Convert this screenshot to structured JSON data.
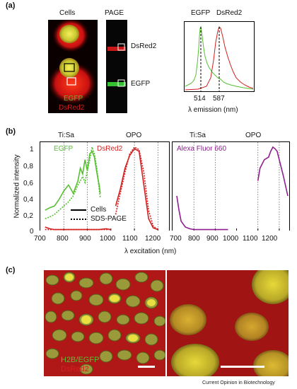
{
  "panel_a": {
    "letter": "(a)",
    "cells_title": "Cells",
    "page_title": "PAGE",
    "legend_green": "EGFP",
    "legend_red": "DsRed2",
    "band_red_label": "DsRed2",
    "band_green_label": "EGFP",
    "spectrum_label_green": "EGFP",
    "spectrum_label_red": "DsRed2",
    "peak_green": "514",
    "peak_red": "587",
    "xlabel": "λ emission (nm)",
    "colors": {
      "green": "#57c030",
      "red": "#d42020",
      "black": "#000000"
    }
  },
  "panel_b": {
    "letter": "(b)",
    "left_top_label_1": "Ti:Sa",
    "left_top_label_2": "OPO",
    "right_top_label_1": "Ti:Sa",
    "right_top_label_2": "OPO",
    "ylabel": "Normalized intensity",
    "xlabel": "λ excitation (nm)",
    "left_series_egfp": "EGFP",
    "left_series_dsred": "DsRed2",
    "right_series_alexa": "Alexa Fluor 660",
    "legend_cells": "Cells",
    "legend_page": "SDS-PAGE"
  },
  "panel_c": {
    "letter": "(c)",
    "label_green": "H2B/EGFP",
    "label_red": "DsRed2"
  },
  "footer": "Current Opinion in Biotechnology",
  "chart_data": [
    {
      "type": "line",
      "title": "",
      "xlabel": "λ excitation (nm)",
      "ylabel": "Normalized intensity",
      "xlim": [
        700,
        1000
      ],
      "ylim": [
        0,
        1.05
      ],
      "xticks": [
        "700",
        "800",
        "900",
        "1000"
      ],
      "yticks": [
        "0",
        "0,2",
        "0,4",
        "0,6",
        "0,8",
        "1"
      ],
      "series": [
        {
          "name": "EGFP",
          "style": "Cells",
          "color": "#57c030",
          "x": [
            720,
            740,
            760,
            780,
            800,
            820,
            840,
            860,
            870,
            880,
            890,
            900,
            910,
            920,
            930,
            940,
            950,
            955
          ],
          "y": [
            0.25,
            0.28,
            0.3,
            0.38,
            0.48,
            0.55,
            0.45,
            0.6,
            0.75,
            0.68,
            0.85,
            0.72,
            0.92,
            0.95,
            0.88,
            0.7,
            0.55,
            0.45
          ]
        },
        {
          "name": "EGFP",
          "style": "SDS-PAGE",
          "color": "#57c030",
          "x": [
            720,
            740,
            760,
            780,
            800,
            820,
            840,
            860,
            880,
            890,
            900,
            910,
            920,
            930,
            940,
            950,
            955
          ],
          "y": [
            0.15,
            0.17,
            0.2,
            0.25,
            0.3,
            0.35,
            0.42,
            0.55,
            0.65,
            0.58,
            0.72,
            0.85,
            1.0,
            0.92,
            0.75,
            0.5,
            0.4
          ]
        },
        {
          "name": "DsRed2",
          "style": "Cells",
          "color": "#d42020",
          "x": [
            720,
            740,
            760,
            780,
            800,
            850,
            900,
            950,
            980,
            1000
          ],
          "y": [
            0.05,
            0.03,
            0.02,
            0.02,
            0.02,
            0.02,
            0.02,
            0.02,
            0.03,
            0.02
          ]
        },
        {
          "name": "DsRed2",
          "style": "SDS-PAGE",
          "color": "#d42020",
          "x": [
            720,
            740,
            760,
            780,
            800,
            850,
            900,
            950,
            980,
            1000
          ],
          "y": [
            0.02,
            0.02,
            0.02,
            0.02,
            0.02,
            0.02,
            0.02,
            0.02,
            0.02,
            0.02
          ]
        }
      ],
      "vlines": [
        800,
        900
      ]
    },
    {
      "type": "line",
      "title": "",
      "xlim": [
        1000,
        1250
      ],
      "ylim": [
        0,
        1.05
      ],
      "xticks": [
        "1100",
        "1200"
      ],
      "series": [
        {
          "name": "DsRed2",
          "style": "Cells",
          "color": "#d42020",
          "x": [
            1020,
            1040,
            1060,
            1080,
            1100,
            1120,
            1140,
            1160,
            1180,
            1200
          ],
          "y": [
            0.3,
            0.5,
            0.75,
            0.9,
            0.98,
            0.95,
            0.55,
            0.15,
            0.04,
            0.02
          ]
        },
        {
          "name": "DsRed2",
          "style": "SDS-PAGE",
          "color": "#d42020",
          "x": [
            1020,
            1040,
            1060,
            1080,
            1100,
            1120,
            1140,
            1160,
            1180,
            1200
          ],
          "y": [
            0.2,
            0.45,
            0.7,
            0.92,
            1.0,
            0.97,
            0.7,
            0.25,
            0.06,
            0.02
          ]
        }
      ],
      "vlines": [
        1100,
        1200
      ]
    },
    {
      "type": "line",
      "title": "",
      "xlim": [
        700,
        1250
      ],
      "ylim": [
        0,
        1.05
      ],
      "xticks": [
        "700",
        "800",
        "900",
        "1000",
        "1100",
        "1200"
      ],
      "series": [
        {
          "name": "Alexa Fluor 660",
          "color": "#8e1f8e",
          "x": [
            720,
            730,
            740,
            760,
            780,
            800,
            850,
            900,
            950,
            960
          ],
          "y": [
            0.42,
            0.25,
            0.12,
            0.05,
            0.03,
            0.02,
            0.02,
            0.02,
            0.02,
            0.02
          ]
        },
        {
          "name": "Alexa Fluor 660",
          "color": "#8e1f8e",
          "x": [
            1100,
            1110,
            1130,
            1150,
            1160,
            1170,
            1180,
            1190,
            1200,
            1220,
            1240
          ],
          "y": [
            0.6,
            0.75,
            0.85,
            0.88,
            0.95,
            1.0,
            0.98,
            0.95,
            0.85,
            0.65,
            0.42
          ]
        }
      ],
      "vlines": [
        800,
        900,
        1100,
        1200
      ]
    }
  ]
}
